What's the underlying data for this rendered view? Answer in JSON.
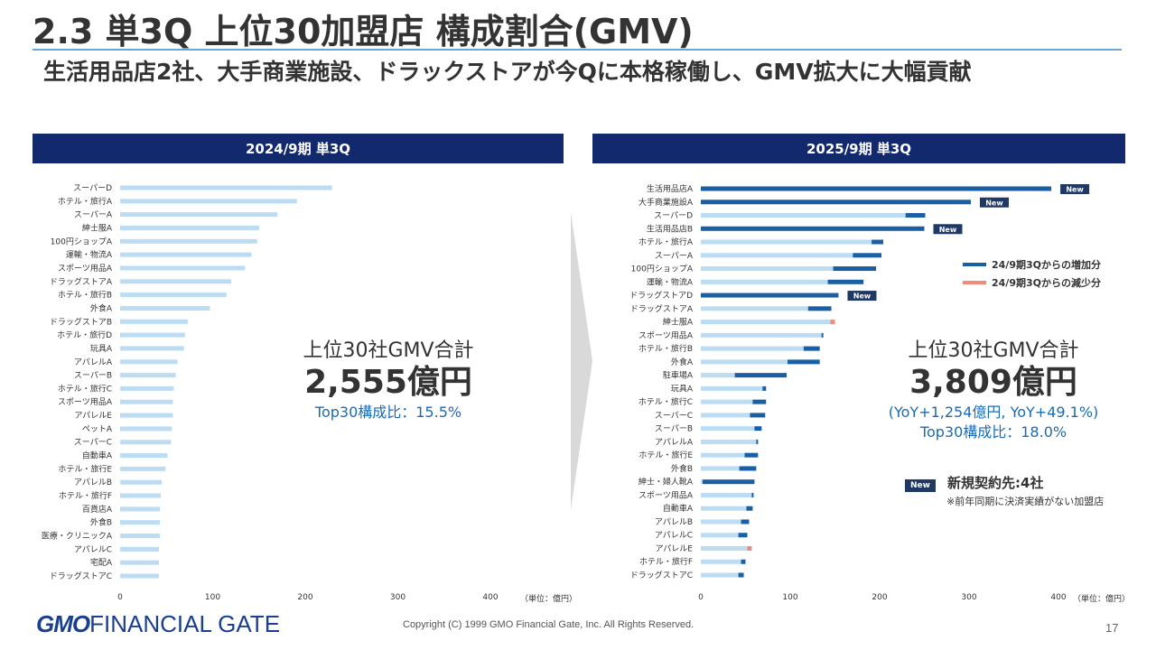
{
  "title": "2.3  単3Q 上位30加盟店 構成割合(GMV)",
  "subtitle": "生活用品店2社、大手商業施設、ドラックストアが今Qに本格稼働し、GMV拡大に大幅貢献",
  "left_header": "2024/9期 単3Q",
  "right_header": "2025/9期 単3Q",
  "unit_label": "（単位：億円）",
  "new_badge": "New",
  "left_summary": {
    "label": "上位30社GMV合計",
    "value": "2,555億円",
    "ratio": "Top30構成比：15.5%"
  },
  "right_summary": {
    "label": "上位30社GMV合計",
    "value": "3,809億円",
    "yoy": "(YoY+1,254億円, YoY+49.1%)",
    "ratio": "Top30構成比：18.0%"
  },
  "legend": {
    "increase": "24/9期3Qからの増加分",
    "decrease": "24/9期3Qからの減少分"
  },
  "new_note": {
    "badge": "New",
    "text": "新規契約先:4社",
    "sub": "※前年同期に決済実績がない加盟店"
  },
  "colors": {
    "header": "#12296e",
    "base": "#bcdcf3",
    "increase": "#1a5ea4",
    "decrease": "#f08a7a",
    "badge": "#1f3864"
  },
  "footer": {
    "logo_bold": "GMO",
    "logo_rest": "FINANCIAL GATE",
    "copyright": "Copyright (C) 1999 GMO Financial Gate, Inc. All Rights Reserved.",
    "page": "17"
  },
  "chart_data": [
    {
      "type": "bar",
      "orientation": "horizontal",
      "title": "2024/9期 単3Q",
      "xlim": [
        0,
        400
      ],
      "xticks": [
        0,
        100,
        200,
        300,
        400
      ],
      "unit": "（単位：億円）",
      "categories": [
        "スーパーD",
        "ホテル・旅行A",
        "スーパーA",
        "紳士服A",
        "100円ショップA",
        "運輸・物流A",
        "スポーツ用品A",
        "ドラッグストアA",
        "ホテル・旅行B",
        "外食A",
        "ドラッグストアB",
        "ホテル・旅行D",
        "玩具A",
        "アパレルA",
        "スーパーB",
        "ホテル・旅行C",
        "スポーツ用品A",
        "アパレルE",
        "ペットA",
        "スーパーC",
        "自動車A",
        "ホテル・旅行E",
        "アパレルB",
        "ホテル・旅行F",
        "百貨店A",
        "外食B",
        "医療・クリニックA",
        "アパレルC",
        "宅配A",
        "ドラッグストアC"
      ],
      "values": [
        229,
        191,
        170,
        150,
        148,
        142,
        135,
        120,
        115,
        97,
        73,
        70,
        69,
        62,
        60,
        58,
        57,
        57,
        56,
        55,
        51,
        49,
        45,
        44,
        43,
        43,
        43,
        42,
        42,
        42
      ]
    },
    {
      "type": "bar",
      "orientation": "horizontal",
      "stacked": true,
      "title": "2025/9期 単3Q",
      "xlim": [
        0,
        400
      ],
      "xticks": [
        0,
        100,
        200,
        300,
        400
      ],
      "unit": "（単位：億円）",
      "categories": [
        "生活用品店A",
        "大手商業施設A",
        "スーパーD",
        "生活用品店B",
        "ホテル・旅行A",
        "スーパーA",
        "100円ショップA",
        "運輸・物流A",
        "ドラッグストアD",
        "ドラッグストアA",
        "紳士服A",
        "スポーツ用品A",
        "ホテル・旅行B",
        "外食A",
        "駐車場A",
        "玩具A",
        "ホテル・旅行C",
        "スーパーC",
        "スーパーB",
        "アパレルA",
        "ホテル・旅行E",
        "外食B",
        "紳士・婦人靴A",
        "スポーツ用品A",
        "自動車A",
        "アパレルB",
        "アパレルC",
        "アパレルE",
        "ホテル・旅行F",
        "ドラッグストアC"
      ],
      "new_flags": [
        true,
        true,
        false,
        true,
        false,
        false,
        false,
        false,
        true,
        false,
        false,
        false,
        false,
        false,
        false,
        false,
        false,
        false,
        false,
        false,
        false,
        false,
        false,
        false,
        false,
        false,
        false,
        false,
        false,
        false
      ],
      "series": [
        {
          "name": "base",
          "values": [
            0,
            0,
            229,
            0,
            191,
            170,
            148,
            142,
            0,
            120,
            145,
            135,
            115,
            97,
            38,
            69,
            58,
            55,
            60,
            62,
            49,
            43,
            2,
            57,
            51,
            45,
            42,
            52,
            45,
            42
          ]
        },
        {
          "name": "24/9期3Qからの増加分",
          "values": [
            392,
            302,
            22,
            250,
            13,
            32,
            48,
            40,
            154,
            26,
            0,
            2,
            18,
            36,
            58,
            4,
            15,
            17,
            8,
            2,
            15,
            19,
            58,
            2,
            7,
            9,
            10,
            0,
            5,
            6
          ]
        },
        {
          "name": "24/9期3Qからの減少分",
          "values": [
            0,
            0,
            0,
            0,
            0,
            0,
            0,
            0,
            0,
            0,
            5,
            0,
            0,
            0,
            0,
            0,
            0,
            0,
            0,
            0,
            0,
            0,
            0,
            0,
            0,
            0,
            0,
            5,
            0,
            0
          ]
        }
      ]
    }
  ]
}
